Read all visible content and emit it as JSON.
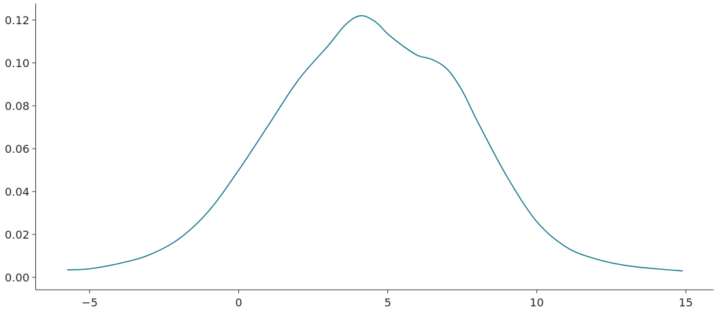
{
  "chart_data": {
    "type": "line",
    "title": "",
    "xlabel": "",
    "ylabel": "",
    "xlim": [
      -6.81,
      15.93
    ],
    "ylim": [
      -0.0058,
      0.1277
    ],
    "grid": false,
    "x_ticks": [
      -5,
      0,
      5,
      10,
      15
    ],
    "x_tick_labels": [
      "−5",
      "0",
      "5",
      "10",
      "15"
    ],
    "y_ticks": [
      0,
      0.02,
      0.04,
      0.06,
      0.08,
      0.1,
      0.12
    ],
    "y_tick_labels": [
      "0.00",
      "0.02",
      "0.04",
      "0.06",
      "0.08",
      "0.10",
      "0.12"
    ],
    "colors": {
      "line": "#137a8c",
      "axis": "#333333"
    },
    "series": [
      {
        "x": [
          -5.75,
          -5,
          -4,
          -3,
          -2,
          -1,
          0,
          1,
          2,
          3,
          3.6,
          4.1,
          4.6,
          5,
          5.5,
          6,
          6.5,
          7,
          7.5,
          8,
          9,
          10,
          11,
          12,
          13,
          14,
          14.9
        ],
        "y": [
          0.0035,
          0.004,
          0.0065,
          0.0105,
          0.018,
          0.031,
          0.05,
          0.071,
          0.092,
          0.108,
          0.118,
          0.122,
          0.119,
          0.1135,
          0.108,
          0.1035,
          0.1015,
          0.097,
          0.087,
          0.073,
          0.047,
          0.026,
          0.014,
          0.0085,
          0.0055,
          0.004,
          0.003
        ]
      }
    ]
  }
}
